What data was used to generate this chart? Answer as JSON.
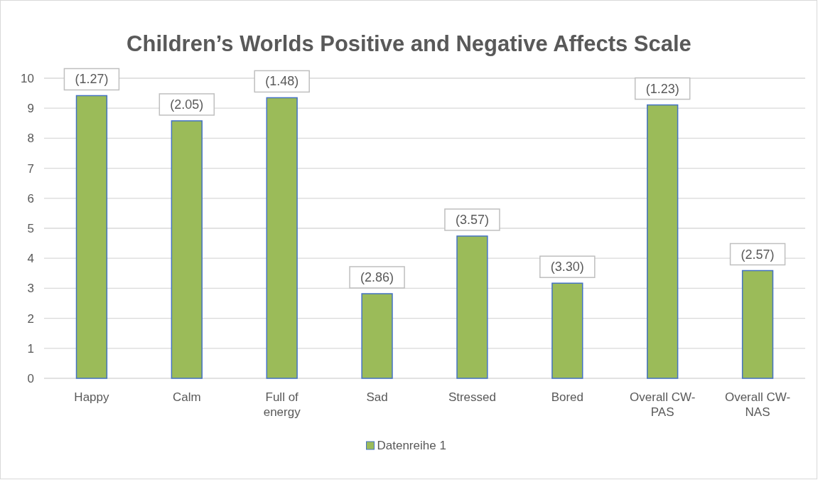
{
  "chart_data": {
    "type": "bar",
    "title": "Children’s Worlds Positive and Negative Affects Scale",
    "categories": [
      "Happy",
      "Calm",
      "Full of energy",
      "Sad",
      "Stressed",
      "Bored",
      "Overall CW-PAS",
      "Overall CW-NAS"
    ],
    "series": [
      {
        "name": "Datenreihe 1",
        "color": "#9bbb59",
        "values": [
          9.42,
          8.58,
          9.35,
          2.82,
          4.74,
          3.17,
          9.11,
          3.59
        ]
      }
    ],
    "annotations": [
      {
        "text": "(1.27)",
        "x": "Happy",
        "y": 9.42
      },
      {
        "text": "(2.05)",
        "x": "Calm",
        "y": 8.58
      },
      {
        "text": "(1.48)",
        "x": "Full of energy",
        "y": 9.35
      },
      {
        "text": "(2.86)",
        "x": "Sad",
        "y": 2.82
      },
      {
        "text": "(3.57)",
        "x": "Stressed",
        "y": 4.74
      },
      {
        "text": "(3.30)",
        "x": "Bored",
        "y": 3.17
      },
      {
        "text": "(1.23)",
        "x": "Overall CW-PAS",
        "y": 9.11
      },
      {
        "text": "(2.57)",
        "x": "Overall CW-NAS",
        "y": 3.59
      }
    ],
    "ylim": [
      0,
      10
    ],
    "yticks": [
      0,
      1,
      2,
      3,
      4,
      5,
      6,
      7,
      8,
      9,
      10
    ],
    "grid": "y",
    "legend": "bottom"
  }
}
